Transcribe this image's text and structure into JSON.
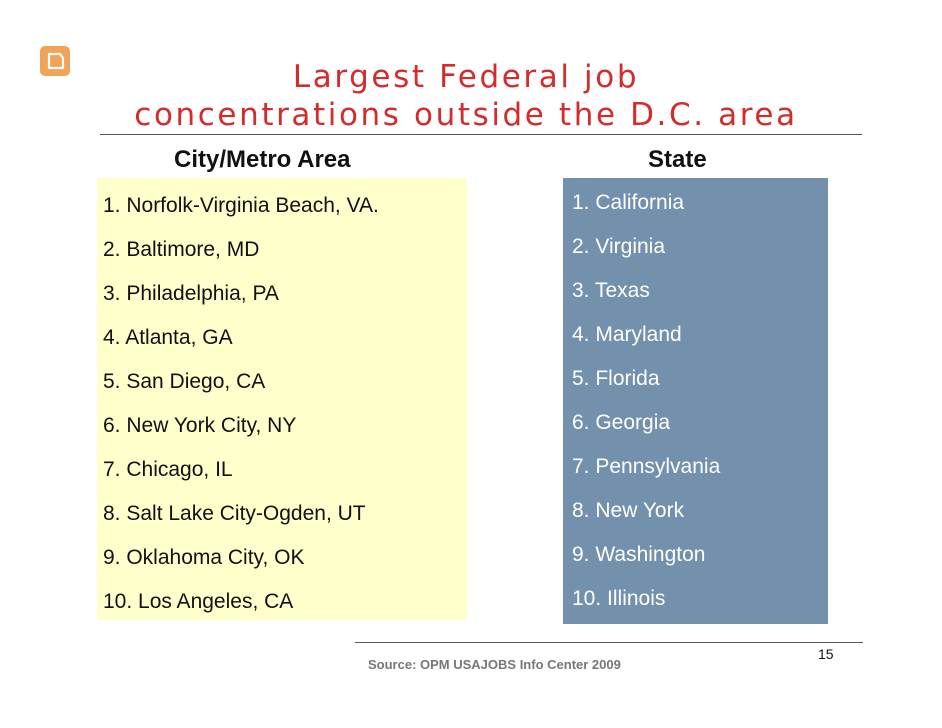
{
  "title": {
    "line1": "Largest Federal job",
    "line2": "concentrations outside the D.C. area"
  },
  "columns": {
    "city_header": "City/Metro Area",
    "state_header": "State"
  },
  "cities": [
    "1. Norfolk-Virginia Beach, VA.",
    "2. Baltimore, MD",
    "3. Philadelphia, PA",
    "4. Atlanta, GA",
    "5. San Diego, CA",
    "6. New York City, NY",
    "7. Chicago, IL",
    "8. Salt Lake City-Ogden, UT",
    "9. Oklahoma City, OK",
    "10. Los Angeles, CA"
  ],
  "states": [
    "1. California",
    "2. Virginia",
    "3. Texas",
    "4. Maryland",
    "5. Florida",
    "6. Georgia",
    "7. Pennsylvania",
    "8. New York",
    "9. Washington",
    "10. Illinois"
  ],
  "footer": {
    "source": "Source: OPM USAJOBS Info Center 2009",
    "page_number": "15"
  },
  "colors": {
    "title": "#d42b2b",
    "city_background": "#ffffcc",
    "state_background": "#7390ad",
    "logo": "#f2a35a"
  },
  "icons": {
    "logo": "rounded-tab-logo-icon"
  }
}
